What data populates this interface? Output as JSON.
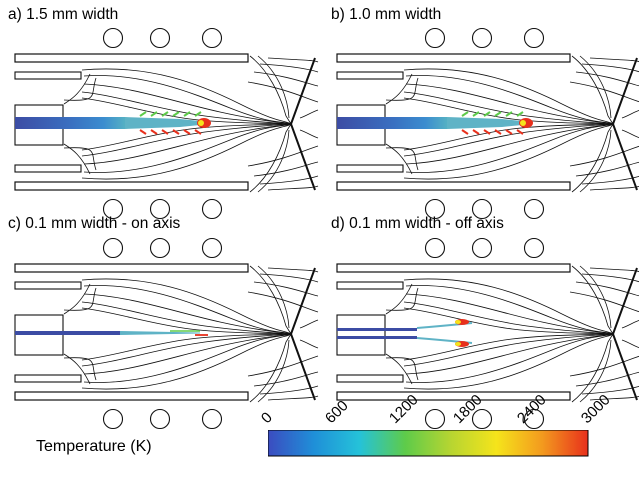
{
  "panels": [
    {
      "id": "a",
      "title": "a) 1.5 mm width",
      "flame": "wide"
    },
    {
      "id": "b",
      "title": "b) 1.0 mm width",
      "flame": "wide"
    },
    {
      "id": "c",
      "title": "c) 0.1 mm width - on axis",
      "flame": "thin-axis"
    },
    {
      "id": "d",
      "title": "d) 0.1 mm width - off axis",
      "flame": "off-axis"
    }
  ],
  "colorbar": {
    "label": "Temperature (K)",
    "ticks": [
      "0",
      "600",
      "1200",
      "1800",
      "2400",
      "3000"
    ],
    "colors": [
      "#3b4cc0",
      "#1f8fd8",
      "#25c2d9",
      "#5ecb4a",
      "#b7d531",
      "#f5e41b",
      "#f39a1e",
      "#e8301c"
    ]
  },
  "colors": {
    "line": "#111111",
    "bar_start": "#3c4ca4",
    "bar_end": "#e3301c"
  }
}
